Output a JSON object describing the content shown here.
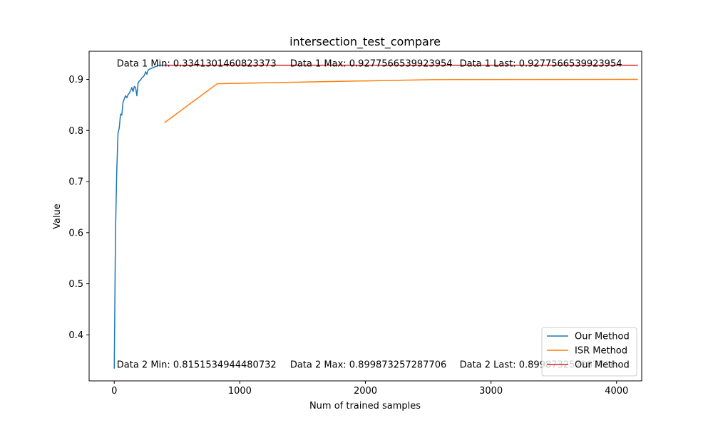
{
  "chart_data": {
    "type": "line",
    "title": "intersection_test_compare",
    "xlabel": "Num of trained samples",
    "ylabel": "Value",
    "xlim": [
      -200,
      4200
    ],
    "ylim": [
      0.31,
      0.955
    ],
    "x_ticks": [
      0,
      1000,
      2000,
      3000,
      4000
    ],
    "x_tick_labels": [
      "0",
      "1000",
      "2000",
      "3000",
      "4000"
    ],
    "y_ticks": [
      0.4,
      0.5,
      0.6,
      0.7,
      0.8,
      0.9
    ],
    "y_tick_labels": [
      "0.4",
      "0.5",
      "0.6",
      "0.7",
      "0.8",
      "0.9"
    ],
    "grid": false,
    "legend_position": "bottom-right",
    "series": [
      {
        "name": "Our Method",
        "color": "#1f77b4",
        "x": [
          0,
          10,
          20,
          30,
          40,
          50,
          60,
          70,
          80,
          90,
          100,
          110,
          120,
          130,
          140,
          150,
          160,
          170,
          180,
          190,
          200,
          210,
          220,
          230,
          240,
          250,
          260,
          270,
          280,
          290,
          300,
          310,
          320,
          330,
          340,
          350,
          360,
          370,
          380,
          390,
          400,
          410,
          420
        ],
        "y": [
          0.334,
          0.6,
          0.72,
          0.795,
          0.805,
          0.832,
          0.83,
          0.855,
          0.862,
          0.868,
          0.864,
          0.87,
          0.873,
          0.878,
          0.884,
          0.876,
          0.886,
          0.884,
          0.868,
          0.893,
          0.897,
          0.899,
          0.903,
          0.905,
          0.908,
          0.915,
          0.91,
          0.918,
          0.92,
          0.921,
          0.922,
          0.923,
          0.924,
          0.925,
          0.926,
          0.927,
          0.9276,
          0.9276,
          0.9276,
          0.9276,
          0.9276,
          0.9276,
          0.9276
        ]
      },
      {
        "name": "ISR Method",
        "color": "#ff7f0e",
        "x": [
          400,
          820,
          2530,
          4170
        ],
        "y": [
          0.8152,
          0.8915,
          0.8995,
          0.8999
        ]
      },
      {
        "name": "Our Method",
        "color": "#d62728",
        "x": [
          400,
          4170
        ],
        "y": [
          0.9276,
          0.9276
        ]
      }
    ],
    "annotations": [
      {
        "text": "Data 1 Min: 0.3341301460823373",
        "x": 20,
        "y": 0.925
      },
      {
        "text": "Data 1 Max: 0.9277566539923954",
        "x": 1400,
        "y": 0.925
      },
      {
        "text": "Data 1 Last: 0.9277566539923954",
        "x": 2750,
        "y": 0.925
      },
      {
        "text": "Data 2 Min: 0.8151534944480732",
        "x": 20,
        "y": 0.336
      },
      {
        "text": "Data 2 Max: 0.899873257287706",
        "x": 1400,
        "y": 0.336
      },
      {
        "text": "Data 2 Last: 0.899873257287706",
        "x": 2750,
        "y": 0.336
      }
    ]
  }
}
